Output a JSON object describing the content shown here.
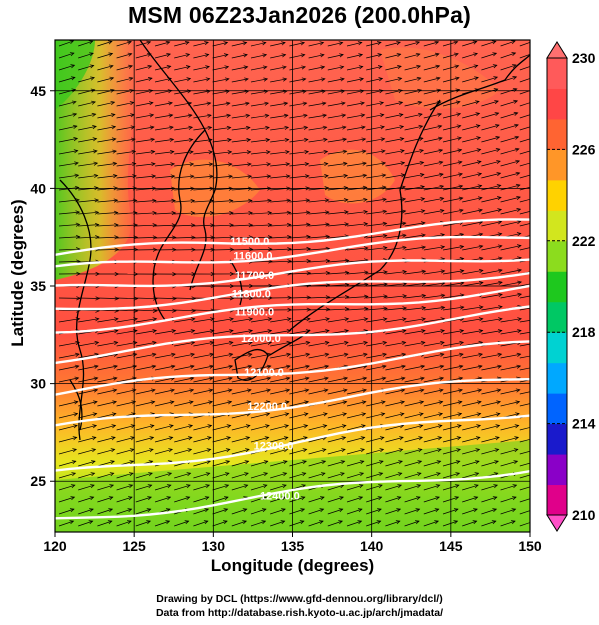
{
  "title": "MSM 06Z23Jan2026 (200.0hPa)",
  "xlabel": "Longitude (degrees)",
  "ylabel": "Latitude  (degrees)",
  "credits": {
    "line1": "Drawing by DCL (https://www.gfd-dennou.org/library/dcl/)",
    "line2": "Data from http://database.rish.kyoto-u.ac.jp/arch/jmadata/"
  },
  "map": {
    "lon_range": [
      120,
      150
    ],
    "lat_range": [
      22.4,
      47.6
    ],
    "lon_ticks": [
      "120",
      "125",
      "130",
      "135",
      "140",
      "145",
      "150"
    ],
    "lat_ticks": [
      "25",
      "30",
      "35",
      "40",
      "45"
    ],
    "field": "temperature",
    "colorbar": {
      "min": 210,
      "max": 230,
      "tick_labels": [
        "230",
        "226",
        "222",
        "218",
        "214",
        "210"
      ],
      "colors": [
        "#e0008a",
        "#8a00c8",
        "#1a1acc",
        "#0064ff",
        "#00a8ff",
        "#00d2d2",
        "#00c864",
        "#1ec81e",
        "#8cdc1e",
        "#d2e61e",
        "#ffd200",
        "#ff9628",
        "#ff6432",
        "#ff4646",
        "#ff5a5a"
      ]
    },
    "contours": [
      {
        "label": "11500.0",
        "lat_west": 36.6,
        "lat_east": 38.3,
        "label_lon": 132.3
      },
      {
        "label": "11600.0",
        "lat_west": 35.8,
        "lat_east": 37.6,
        "label_lon": 132.5
      },
      {
        "label": "11700.0",
        "lat_west": 34.8,
        "lat_east": 36.6,
        "label_lon": 132.6
      },
      {
        "label": "11800.0",
        "lat_west": 33.8,
        "lat_east": 35.8,
        "label_lon": 132.4
      },
      {
        "label": "11900.0",
        "lat_west": 32.8,
        "lat_east": 34.9,
        "label_lon": 132.6
      },
      {
        "label": "12000.0",
        "lat_west": 31.3,
        "lat_east": 33.7,
        "label_lon": 133.0
      },
      {
        "label": "12100.0",
        "lat_west": 29.5,
        "lat_east": 32.0,
        "label_lon": 133.2
      },
      {
        "label": "12200.0",
        "lat_west": 27.7,
        "lat_east": 30.3,
        "label_lon": 133.4
      },
      {
        "label": "12300.0",
        "lat_west": 25.3,
        "lat_east": 28.6,
        "label_lon": 133.8
      },
      {
        "label": "12400.0",
        "lat_west": 23.0,
        "lat_east": 25.7,
        "label_lon": 134.2
      }
    ]
  }
}
